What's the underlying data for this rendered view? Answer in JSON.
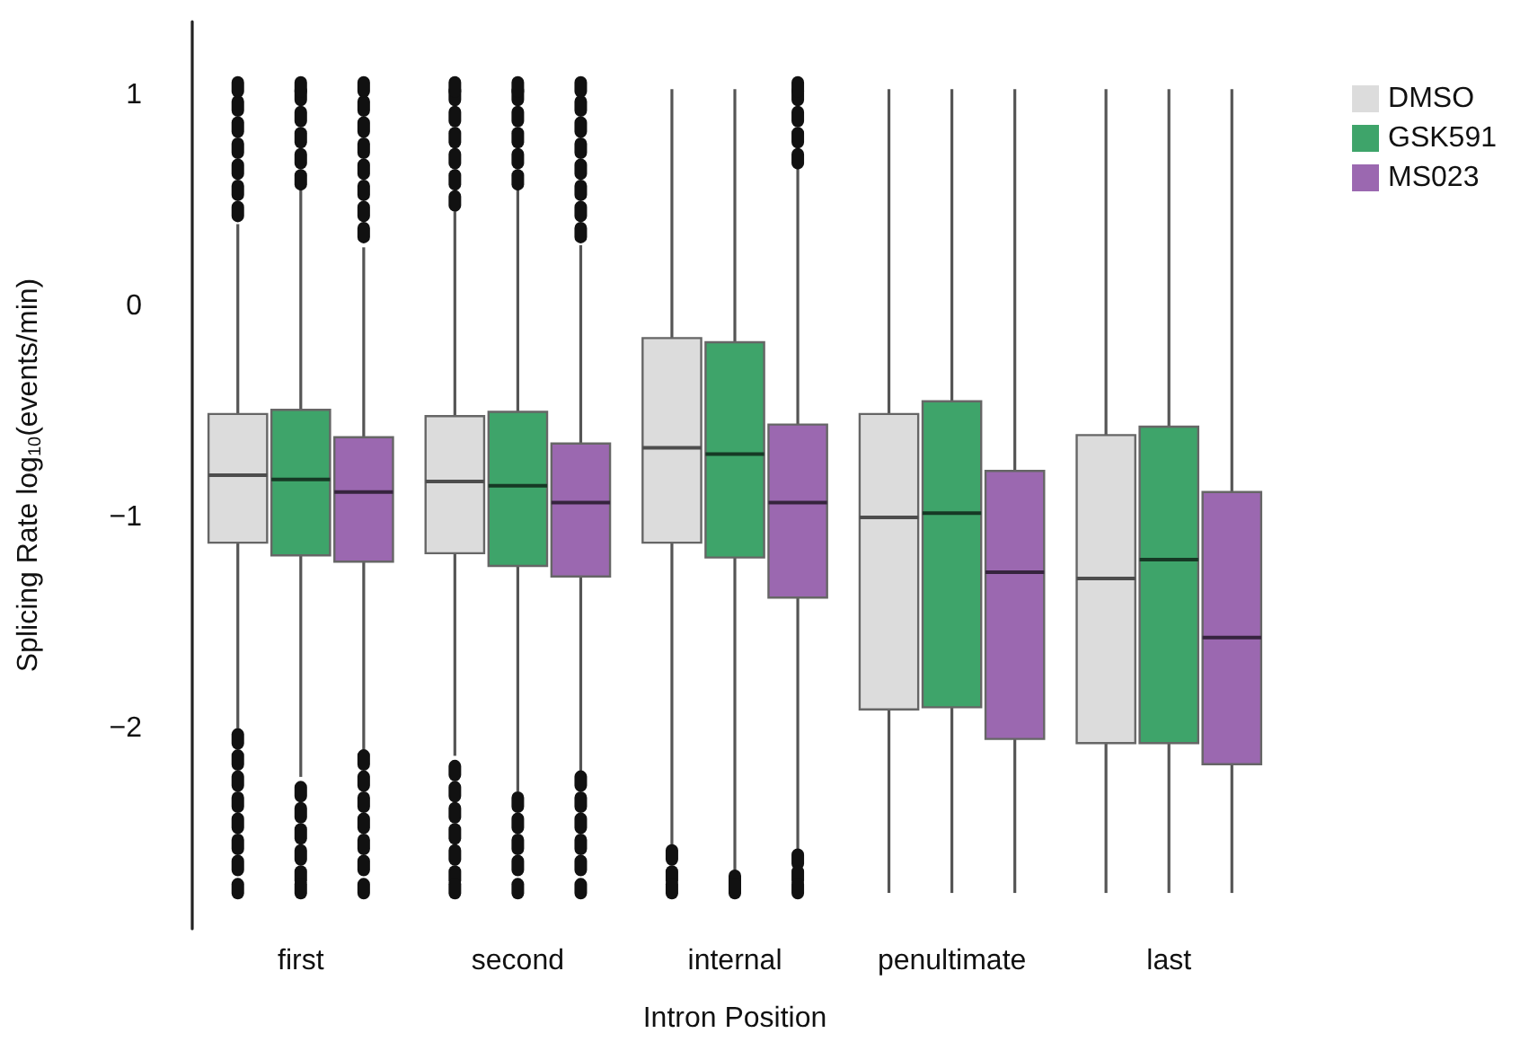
{
  "chart_data": {
    "type": "box",
    "xlabel": "Intron Position",
    "ylabel": "Splicing Rate log$_{10}$(events/min)",
    "categories": [
      "first",
      "second",
      "internal",
      "penultimate",
      "last"
    ],
    "ylim": [
      -2.95,
      1.35
    ],
    "yticks": [
      {
        "value": -2,
        "label": "−2"
      },
      {
        "value": -1,
        "label": "−1"
      },
      0,
      1
    ],
    "legend": "top right",
    "series": [
      {
        "name": "DMSO",
        "color": "#dcdcdc",
        "boxes": [
          {
            "low": -2.0,
            "q1": -1.12,
            "median": -0.8,
            "q3": -0.51,
            "high": 0.39,
            "outliers": [
              0.45,
              0.55,
              0.65,
              0.75,
              0.85,
              0.95,
              1.04,
              -2.05,
              -2.15,
              -2.25,
              -2.35,
              -2.45,
              -2.55,
              -2.65,
              -2.76
            ]
          },
          {
            "low": -2.13,
            "q1": -1.17,
            "median": -0.83,
            "q3": -0.52,
            "high": 0.45,
            "outliers": [
              0.5,
              0.6,
              0.7,
              0.8,
              0.9,
              1.0,
              1.04,
              -2.2,
              -2.3,
              -2.4,
              -2.5,
              -2.6,
              -2.7,
              -2.76
            ]
          },
          {
            "low": -2.55,
            "q1": -1.12,
            "median": -0.67,
            "q3": -0.15,
            "high": 1.03,
            "outliers": [
              -2.6,
              -2.7,
              -2.76
            ]
          },
          {
            "low": -2.78,
            "q1": -1.91,
            "median": -1.0,
            "q3": -0.51,
            "high": 1.03
          },
          {
            "low": -2.78,
            "q1": -2.07,
            "median": -1.29,
            "q3": -0.61,
            "high": 1.03
          }
        ]
      },
      {
        "name": "GSK591",
        "color": "#3ea46a",
        "boxes": [
          {
            "low": -2.23,
            "q1": -1.18,
            "median": -0.82,
            "q3": -0.49,
            "high": 0.56,
            "outliers": [
              0.6,
              0.7,
              0.8,
              0.9,
              1.0,
              1.04,
              -2.3,
              -2.4,
              -2.5,
              -2.6,
              -2.7,
              -2.76
            ]
          },
          {
            "low": -2.3,
            "q1": -1.23,
            "median": -0.85,
            "q3": -0.5,
            "high": 0.56,
            "outliers": [
              0.6,
              0.7,
              0.8,
              0.9,
              1.0,
              1.04,
              -2.35,
              -2.45,
              -2.55,
              -2.65,
              -2.76
            ]
          },
          {
            "low": -2.68,
            "q1": -1.19,
            "median": -0.7,
            "q3": -0.17,
            "high": 1.03,
            "outliers": [
              -2.72,
              -2.76
            ]
          },
          {
            "low": -2.78,
            "q1": -1.9,
            "median": -0.98,
            "q3": -0.45,
            "high": 1.03
          },
          {
            "low": -2.78,
            "q1": -2.07,
            "median": -1.2,
            "q3": -0.57,
            "high": 1.03
          }
        ]
      },
      {
        "name": "MS023",
        "color": "#9b68b0",
        "boxes": [
          {
            "low": -2.11,
            "q1": -1.21,
            "median": -0.88,
            "q3": -0.62,
            "high": 0.28,
            "outliers": [
              0.35,
              0.45,
              0.55,
              0.65,
              0.75,
              0.85,
              0.95,
              1.04,
              -2.15,
              -2.25,
              -2.35,
              -2.45,
              -2.55,
              -2.65,
              -2.76
            ]
          },
          {
            "low": -2.21,
            "q1": -1.28,
            "median": -0.93,
            "q3": -0.65,
            "high": 0.29,
            "outliers": [
              0.35,
              0.45,
              0.55,
              0.65,
              0.75,
              0.85,
              0.95,
              1.04,
              -2.25,
              -2.35,
              -2.45,
              -2.55,
              -2.65,
              -2.76
            ]
          },
          {
            "low": -2.58,
            "q1": -1.38,
            "median": -0.93,
            "q3": -0.56,
            "high": 0.66,
            "outliers": [
              0.7,
              0.8,
              0.9,
              1.0,
              1.04,
              -2.62,
              -2.7,
              -2.76
            ]
          },
          {
            "low": -2.78,
            "q1": -2.05,
            "median": -1.26,
            "q3": -0.78,
            "high": 1.03
          },
          {
            "low": -2.78,
            "q1": -2.17,
            "median": -1.57,
            "q3": -0.88,
            "high": 1.03
          }
        ]
      }
    ]
  }
}
